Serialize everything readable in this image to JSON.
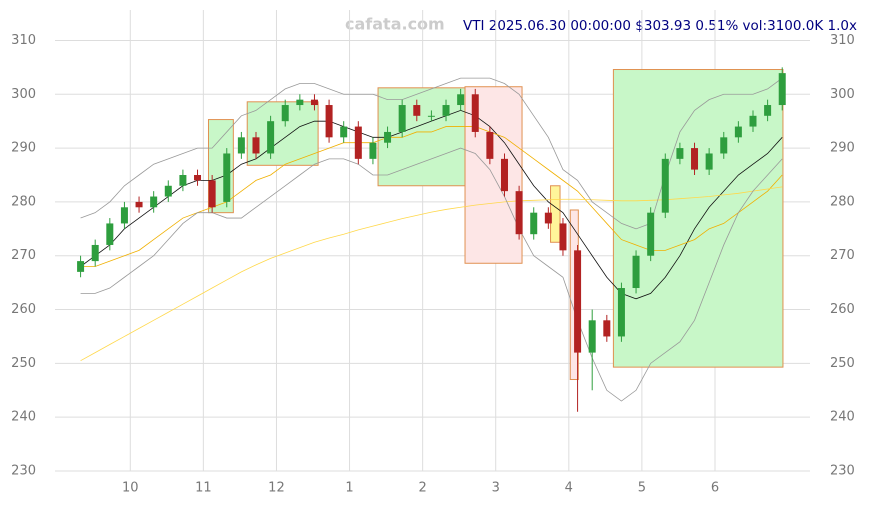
{
  "chart_data": {
    "type": "candlestick",
    "header": "VTI 2025.06.30 00:00:00 $303.93 0.51% vol:3100.0K 1.0x",
    "watermark": "cafata.com",
    "grid": true,
    "xlim": [
      -1.03,
      9.3
    ],
    "ylim": [
      230,
      312.5
    ],
    "xticks": [
      {
        "value": 0,
        "label": "10"
      },
      {
        "value": 1,
        "label": "11"
      },
      {
        "value": 2,
        "label": "12"
      },
      {
        "value": 3,
        "label": "1"
      },
      {
        "value": 4,
        "label": "2"
      },
      {
        "value": 5,
        "label": "3"
      },
      {
        "value": 6,
        "label": "4"
      },
      {
        "value": 7,
        "label": "5"
      },
      {
        "value": 8,
        "label": "6"
      }
    ],
    "yticks": [
      230,
      240,
      250,
      260,
      270,
      280,
      290,
      300,
      310
    ],
    "up_color": "#2e9e3e",
    "down_color": "#b22222",
    "x": [
      -0.68,
      -0.48,
      -0.28,
      -0.08,
      0.12,
      0.32,
      0.52,
      0.72,
      0.92,
      1.12,
      1.32,
      1.52,
      1.72,
      1.92,
      2.12,
      2.32,
      2.52,
      2.72,
      2.92,
      3.12,
      3.32,
      3.52,
      3.72,
      3.92,
      4.12,
      4.32,
      4.52,
      4.72,
      4.92,
      5.12,
      5.32,
      5.52,
      5.72,
      5.92,
      6.12,
      6.32,
      6.52,
      6.72,
      6.92,
      7.12,
      7.32,
      7.52,
      7.72,
      7.92,
      8.12,
      8.32,
      8.52,
      8.72,
      8.92
    ],
    "open": [
      267,
      269,
      272,
      276,
      280,
      279,
      281,
      283,
      285,
      284,
      280,
      289,
      292,
      289,
      295,
      298,
      299,
      298,
      292,
      294,
      288,
      291,
      293,
      298,
      296,
      296,
      298,
      300,
      293,
      288,
      282,
      274,
      278,
      276,
      271,
      252,
      258,
      255,
      264,
      270,
      278,
      288,
      290,
      286,
      289,
      292,
      294,
      296,
      298
    ],
    "high": [
      270,
      273,
      277,
      280,
      281,
      282,
      284,
      286,
      286,
      285,
      290,
      293,
      293,
      296,
      299,
      300,
      300,
      299,
      295,
      295,
      292,
      294,
      299,
      299,
      297,
      299,
      301,
      301,
      294,
      289,
      283,
      279,
      279,
      277,
      272,
      260,
      259,
      265,
      271,
      279,
      289,
      291,
      291,
      290,
      293,
      295,
      297,
      299,
      305
    ],
    "low": [
      266,
      268,
      271,
      275,
      278,
      278,
      280,
      282,
      283,
      278,
      279,
      288,
      288,
      288,
      294,
      297,
      297,
      291,
      291,
      287,
      287,
      290,
      292,
      295,
      295,
      295,
      297,
      292,
      287,
      281,
      273,
      273,
      275,
      270,
      241,
      245,
      254,
      254,
      263,
      269,
      277,
      287,
      285,
      285,
      288,
      291,
      293,
      295,
      297
    ],
    "close": [
      269,
      272,
      276,
      279,
      279,
      281,
      283,
      285,
      284,
      279,
      289,
      292,
      289,
      295,
      298,
      299,
      298,
      292,
      294,
      288,
      291,
      293,
      298,
      296,
      296,
      298,
      300,
      293,
      288,
      282,
      274,
      278,
      276,
      271,
      252,
      258,
      255,
      264,
      270,
      278,
      288,
      290,
      286,
      289,
      292,
      294,
      296,
      298,
      303.93
    ],
    "lines": [
      {
        "color": "#111111",
        "values": [
          268,
          270,
          272,
          275,
          277,
          279,
          281,
          283,
          284,
          284,
          285,
          287,
          288,
          290,
          292,
          294,
          295,
          295,
          294,
          293,
          292,
          292,
          293,
          294,
          295,
          296,
          297,
          296,
          294,
          291,
          287,
          283,
          280,
          278,
          274,
          270,
          266,
          263,
          262,
          263,
          266,
          270,
          275,
          279,
          282,
          285,
          287,
          289,
          292
        ]
      },
      {
        "color": "#f0b000",
        "values": [
          268,
          268,
          269,
          270,
          271,
          273,
          275,
          277,
          278,
          279,
          280,
          282,
          284,
          285,
          287,
          288,
          289,
          290,
          291,
          291,
          291,
          292,
          292,
          293,
          293,
          294,
          294,
          294,
          293,
          292,
          290,
          288,
          286,
          284,
          282,
          279,
          276,
          273,
          272,
          271,
          271,
          272,
          273,
          275,
          276,
          278,
          280,
          282,
          285
        ]
      },
      {
        "color": "#ffd84a",
        "values": [
          250.5,
          252,
          253.5,
          255,
          256.5,
          258,
          259.5,
          261,
          262.5,
          264,
          265.5,
          267,
          268.3,
          269.5,
          270.5,
          271.5,
          272.5,
          273.3,
          274,
          274.8,
          275.5,
          276.2,
          276.9,
          277.5,
          278.1,
          278.6,
          279,
          279.4,
          279.7,
          280,
          280.2,
          280.3,
          280.4,
          280.5,
          280.5,
          280.4,
          280.3,
          280.2,
          280.2,
          280.3,
          280.4,
          280.6,
          280.8,
          281,
          281.3,
          281.6,
          282,
          282.4,
          282.8
        ]
      },
      {
        "color": "#999999",
        "values": [
          277,
          278,
          280,
          283,
          285,
          287,
          288,
          289,
          290,
          290,
          293,
          296,
          297,
          299,
          301,
          302,
          302,
          301,
          300,
          300,
          300,
          299,
          299,
          300,
          301,
          302,
          303,
          303,
          303,
          302,
          300,
          296,
          292,
          286,
          284,
          280,
          278,
          276,
          275,
          276,
          285,
          293,
          297,
          299,
          300,
          300,
          300,
          301,
          303
        ]
      },
      {
        "color": "#999999",
        "values": [
          263,
          263,
          264,
          266,
          268,
          270,
          273,
          276,
          278,
          278,
          277,
          277,
          279,
          281,
          283,
          285,
          287,
          288,
          288,
          287,
          285,
          285,
          286,
          287,
          288,
          289,
          290,
          289,
          286,
          281,
          275,
          270,
          268,
          266,
          258,
          251,
          245,
          243,
          245,
          250,
          252,
          254,
          258,
          265,
          272,
          278,
          282,
          285,
          288
        ]
      }
    ],
    "zones": [
      {
        "x0": 1.07,
        "x1": 1.41,
        "y0": 278,
        "y1": 295.3,
        "fill": "#c8f7c8"
      },
      {
        "x0": 1.6,
        "x1": 2.57,
        "y0": 286.8,
        "y1": 298.6,
        "fill": "#c8f7c8"
      },
      {
        "x0": 3.39,
        "x1": 4.58,
        "y0": 283,
        "y1": 301.2,
        "fill": "#c8f7c8"
      },
      {
        "x0": 4.58,
        "x1": 5.36,
        "y0": 268.6,
        "y1": 301.4,
        "fill": "#fde6e6"
      },
      {
        "x0": 5.75,
        "x1": 5.88,
        "y0": 272.5,
        "y1": 283,
        "fill": "#fff59a"
      },
      {
        "x0": 6.02,
        "x1": 6.13,
        "y0": 247,
        "y1": 278.5,
        "fill": "#fde6e6"
      },
      {
        "x0": 6.61,
        "x1": 8.93,
        "y0": 249.3,
        "y1": 304.6,
        "fill": "#c8f7c8"
      }
    ]
  }
}
